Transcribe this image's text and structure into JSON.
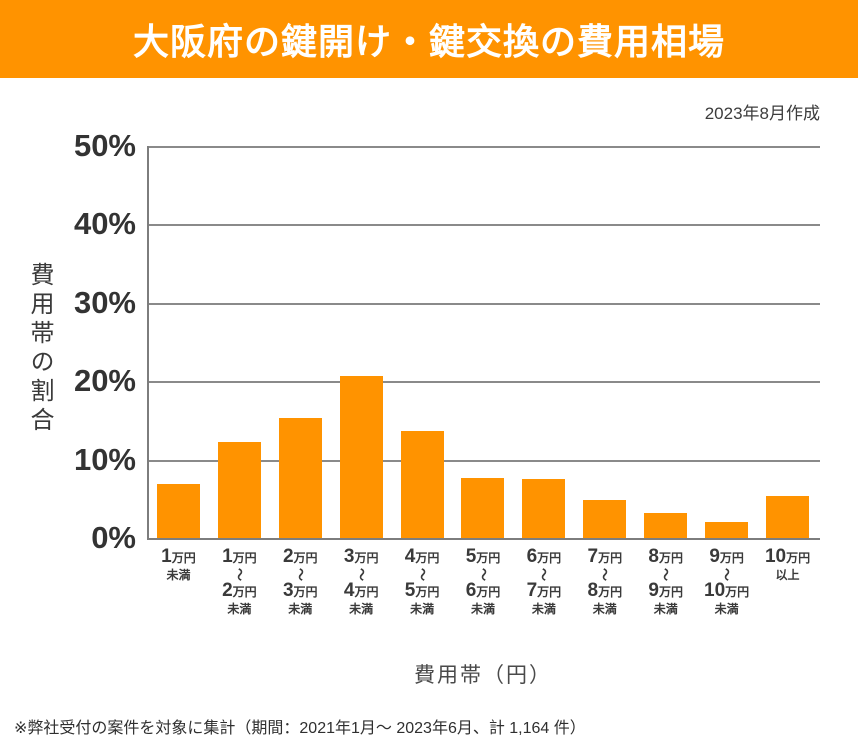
{
  "banner": {
    "title": "大阪府の鍵開け・鍵交換の費用相場",
    "bg_color": "#FF9300",
    "text_color": "#FFFFFF"
  },
  "meta": {
    "created_label": "2023年8月作成"
  },
  "chart_data": {
    "type": "bar",
    "title": "大阪府の鍵開け・鍵交換の費用相場",
    "xlabel": "費用帯（円）",
    "ylabel": "費用帯の割合",
    "ylim": [
      0,
      50
    ],
    "grid": true,
    "bar_color": "#FF9300",
    "gridline_color": "#8a8a8a",
    "axis_color": "#7d7d7d",
    "yticks": [
      {
        "value": 50,
        "label": "50%"
      },
      {
        "value": 40,
        "label": "40%"
      },
      {
        "value": 30,
        "label": "30%"
      },
      {
        "value": 20,
        "label": "20%"
      },
      {
        "value": 10,
        "label": "10%"
      },
      {
        "value": 0,
        "label": "0%"
      }
    ],
    "categories": [
      {
        "lines": [
          "1万円",
          "未満"
        ]
      },
      {
        "lines": [
          "1万円",
          "〜",
          "2万円",
          "未満"
        ]
      },
      {
        "lines": [
          "2万円",
          "〜",
          "3万円",
          "未満"
        ]
      },
      {
        "lines": [
          "3万円",
          "〜",
          "4万円",
          "未満"
        ]
      },
      {
        "lines": [
          "4万円",
          "〜",
          "5万円",
          "未満"
        ]
      },
      {
        "lines": [
          "5万円",
          "〜",
          "6万円",
          "未満"
        ]
      },
      {
        "lines": [
          "6万円",
          "〜",
          "7万円",
          "未満"
        ]
      },
      {
        "lines": [
          "7万円",
          "〜",
          "8万円",
          "未満"
        ]
      },
      {
        "lines": [
          "8万円",
          "〜",
          "9万円",
          "未満"
        ]
      },
      {
        "lines": [
          "9万円",
          "〜",
          "10万円",
          "未満"
        ]
      },
      {
        "lines": [
          "10万円",
          "以上"
        ]
      }
    ],
    "values": [
      6.9,
      12.2,
      15.3,
      20.7,
      13.7,
      7.7,
      7.5,
      4.9,
      3.2,
      2.1,
      5.3
    ]
  },
  "footnote": "※弊社受付の案件を対象に集計（期間：2021年1月～ 2023年6月、計 1,164 件）"
}
